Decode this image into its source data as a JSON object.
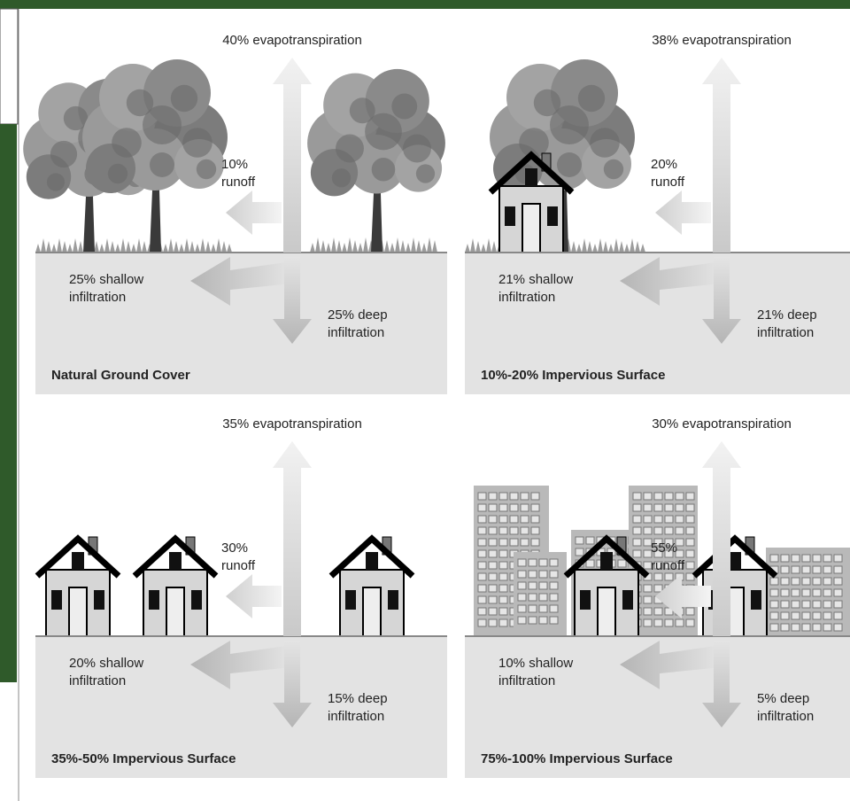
{
  "panels": [
    {
      "title": "Natural Ground Cover",
      "evapotranspiration": "40% evapotranspiration",
      "runoff": [
        "10%",
        "runoff"
      ],
      "shallow": [
        "25% shallow",
        "infiltration"
      ],
      "deep": [
        "25% deep",
        "infiltration"
      ]
    },
    {
      "title": "10%-20% Impervious Surface",
      "evapotranspiration": "38% evapotranspiration",
      "runoff": [
        "20%",
        "runoff"
      ],
      "shallow": [
        "21% shallow",
        "infiltration"
      ],
      "deep": [
        "21% deep",
        "infiltration"
      ]
    },
    {
      "title": "35%-50% Impervious Surface",
      "evapotranspiration": "35% evapotranspiration",
      "runoff": [
        "30%",
        "runoff"
      ],
      "shallow": [
        "20% shallow",
        "infiltration"
      ],
      "deep": [
        "15% deep",
        "infiltration"
      ]
    },
    {
      "title": "75%-100% Impervious Surface",
      "evapotranspiration": "30% evapotranspiration",
      "runoff": [
        "55%",
        "runoff"
      ],
      "shallow": [
        "10% shallow",
        "infiltration"
      ],
      "deep": [
        "5% deep",
        "infiltration"
      ]
    }
  ]
}
